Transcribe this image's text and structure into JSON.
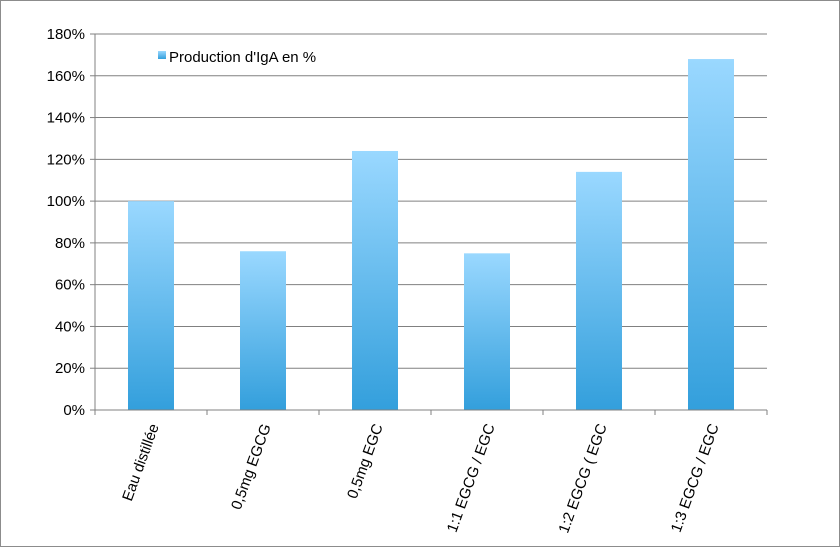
{
  "chart_data": {
    "type": "bar",
    "title": "",
    "xlabel": "",
    "ylabel": "",
    "categories": [
      "Eau distillée",
      "0,5mg EGCG",
      "0,5mg EGC",
      "1:1 EGCG / EGC",
      "1:2 EGCG ( EGC",
      "1:3 EGCG / EGC"
    ],
    "series": [
      {
        "name": "Production d'IgA en %",
        "values": [
          100,
          76,
          124,
          75,
          114,
          168
        ]
      }
    ],
    "ylim": [
      0,
      180
    ],
    "yticks": [
      0,
      20,
      40,
      60,
      80,
      100,
      120,
      140,
      160,
      180
    ],
    "ytick_labels": [
      "0%",
      "20%",
      "40%",
      "60%",
      "80%",
      "100%",
      "120%",
      "140%",
      "160%",
      "180%"
    ],
    "grid": true,
    "legend_position": "top-left",
    "colors": {
      "bar_top": "#9ad8ff",
      "bar_bottom": "#339fdc",
      "grid": "#808080",
      "axis": "#808080"
    }
  }
}
